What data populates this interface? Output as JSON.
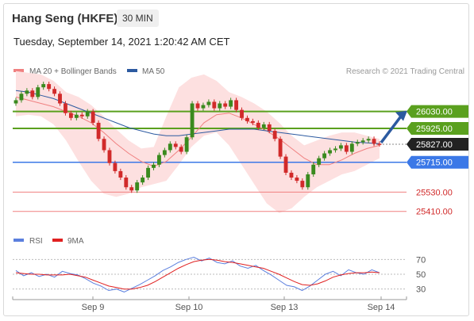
{
  "header": {
    "title": "Hang Seng (HKFE)",
    "timeframe": "30 MIN",
    "datetime": "Tuesday, September 14, 2021 1:20:42 AM CET"
  },
  "legend": {
    "items": [
      {
        "label": "MA 20 + Bollinger Bands",
        "color": "#f08080"
      },
      {
        "label": "MA 50",
        "color": "#2c5aa0"
      }
    ],
    "credit": "Research © 2021 Trading Central"
  },
  "rsi_legend": {
    "items": [
      {
        "label": "RSI",
        "color": "#5b7fde"
      },
      {
        "label": "9MA",
        "color": "#e02020"
      }
    ]
  },
  "colors": {
    "up": "#3a8a1e",
    "down": "#d12a2a",
    "band": "#fde0e0",
    "resistance": "#5aa01e",
    "support_blue": "#3b78e7",
    "support_red": "#f08080",
    "current": "#222222",
    "arrow": "#2c5aa0"
  },
  "chart_data": [
    {
      "type": "candlestick",
      "title": "Hang Seng (HKFE)",
      "timeframe": "30 MIN",
      "ylim": [
        25330,
        26230
      ],
      "x_tick_labels": [
        "Sep 9",
        "Sep 10",
        "Sep 13",
        "Sep 14"
      ],
      "levels": [
        {
          "value": 26030,
          "label": "26030.00",
          "kind": "resistance"
        },
        {
          "value": 25925,
          "label": "25925.00",
          "kind": "resistance"
        },
        {
          "value": 25827,
          "label": "25827.00",
          "kind": "current"
        },
        {
          "value": 25715,
          "label": "25715.00",
          "kind": "pivot"
        },
        {
          "value": 25530,
          "label": "25530.00",
          "kind": "support"
        },
        {
          "value": 25410,
          "label": "25410.00",
          "kind": "support"
        }
      ],
      "close": [
        26100,
        26140,
        26160,
        26120,
        26180,
        26200,
        26170,
        26140,
        26080,
        26020,
        25990,
        26010,
        26000,
        26030,
        25960,
        25860,
        25790,
        25710,
        25660,
        25620,
        25560,
        25540,
        25590,
        25620,
        25680,
        25700,
        25760,
        25790,
        25830,
        25810,
        25780,
        25870,
        26080,
        26050,
        26070,
        26090,
        26050,
        26080,
        26060,
        26100,
        26040,
        25990,
        25970,
        25960,
        25930,
        25950,
        25910,
        25860,
        25750,
        25650,
        25620,
        25600,
        25560,
        25640,
        25700,
        25740,
        25770,
        25790,
        25800,
        25820,
        25780,
        25830,
        25840,
        25850,
        25860,
        25830,
        25827
      ],
      "ma20": [
        26120,
        26100,
        26080,
        26060,
        26030,
        26000,
        25960,
        25900,
        25830,
        25770,
        25720,
        25690,
        25720,
        25790,
        25870,
        25960,
        26010,
        26020,
        25990,
        25950,
        25910,
        25860,
        25800,
        25740,
        25700,
        25700,
        25730,
        25770,
        25800,
        25820
      ],
      "ma50": [
        26160,
        26150,
        26130,
        26110,
        26080,
        26050,
        26020,
        25990,
        25960,
        25930,
        25910,
        25890,
        25880,
        25880,
        25890,
        25900,
        25910,
        25920,
        25920,
        25920,
        25910,
        25900,
        25890,
        25880,
        25870,
        25860,
        25850,
        25840,
        25835,
        25830
      ],
      "band_upper": [
        26280,
        26270,
        26260,
        26220,
        26150,
        26120,
        26070,
        26000,
        25920,
        25850,
        25800,
        25810,
        26000,
        26180,
        26240,
        26260,
        26220,
        26150,
        26120,
        26080,
        26030,
        25960,
        25880,
        25820,
        25850,
        25880,
        25900,
        25900,
        25880,
        25860
      ],
      "band_lower": [
        26000,
        26010,
        26000,
        25950,
        25850,
        25720,
        25600,
        25520,
        25500,
        25520,
        25560,
        25580,
        25600,
        25700,
        25810,
        25880,
        25900,
        25820,
        25700,
        25580,
        25460,
        25400,
        25430,
        25500,
        25560,
        25600,
        25640,
        25660,
        25700,
        25740
      ]
    },
    {
      "type": "line",
      "title": "RSI",
      "ylim": [
        20,
        80
      ],
      "y_ticks": [
        70,
        50,
        30
      ],
      "x_tick_labels": [
        "Sep 9",
        "Sep 10",
        "Sep 13",
        "Sep 14"
      ],
      "series": [
        {
          "name": "RSI",
          "values": [
            55,
            48,
            52,
            47,
            50,
            46,
            54,
            51,
            49,
            44,
            38,
            34,
            28,
            30,
            26,
            31,
            36,
            42,
            48,
            55,
            60,
            66,
            70,
            73,
            68,
            72,
            66,
            64,
            68,
            61,
            58,
            62,
            55,
            49,
            42,
            35,
            33,
            28,
            34,
            42,
            50,
            54,
            48,
            56,
            52,
            50,
            56,
            52
          ]
        },
        {
          "name": "9MA",
          "values": [
            52,
            51,
            50,
            50,
            49,
            49,
            49,
            50,
            48,
            46,
            42,
            38,
            34,
            32,
            30,
            30,
            32,
            35,
            40,
            46,
            52,
            58,
            63,
            67,
            69,
            70,
            69,
            67,
            66,
            64,
            62,
            60,
            58,
            54,
            50,
            45,
            40,
            36,
            35,
            37,
            41,
            46,
            49,
            51,
            52,
            52,
            53,
            52
          ]
        }
      ]
    }
  ]
}
